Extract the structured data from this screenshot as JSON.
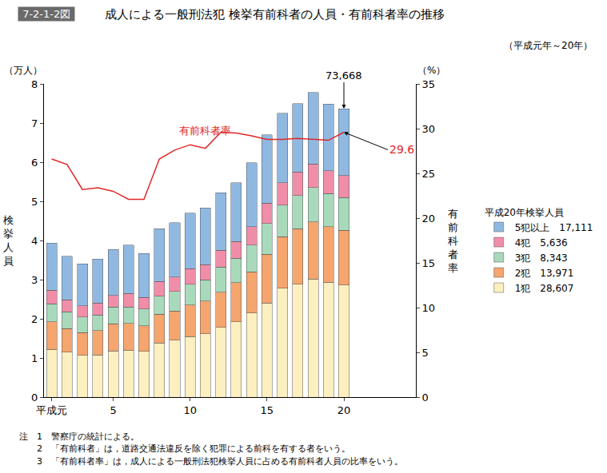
{
  "chart_data": {
    "type": "bar",
    "figure_number": "7-2-1-2図",
    "title": "成人による一般刑法犯 検挙有前科者の人員・有前科者率の推移",
    "subtitle": "（平成元年～20年）",
    "categories": [
      "平成元",
      null,
      null,
      null,
      "5",
      null,
      null,
      null,
      null,
      "10",
      null,
      null,
      null,
      null,
      "15",
      null,
      null,
      null,
      null,
      "20"
    ],
    "stacked": true,
    "grid": false,
    "legend": "right",
    "legend_title": "平成20年検挙人員",
    "y_label": "（万人）",
    "y_title": "検挙人員",
    "y2_label": "（%）",
    "y2_title": "有前科者率",
    "ylim": [
      0,
      8
    ],
    "yticks": [
      0,
      1,
      2,
      3,
      4,
      5,
      6,
      7,
      8
    ],
    "y2lim": [
      0,
      35
    ],
    "y2ticks": [
      0,
      5,
      10,
      15,
      20,
      25,
      30,
      35
    ],
    "series": [
      {
        "name": "1犯",
        "type": "bar",
        "color": "#fcefc0",
        "count_2008": 28607,
        "count_2008_label": "28,607",
        "values": [
          1.22,
          1.15,
          1.07,
          1.08,
          1.18,
          1.2,
          1.17,
          1.38,
          1.45,
          1.55,
          1.62,
          1.78,
          1.92,
          2.15,
          2.4,
          2.78,
          2.88,
          3.02,
          2.93,
          2.8607
        ]
      },
      {
        "name": "2犯",
        "type": "bar",
        "color": "#f5a56e",
        "count_2008": 13971,
        "count_2008_label": "13,971",
        "values": [
          0.7,
          0.6,
          0.58,
          0.62,
          0.69,
          0.68,
          0.65,
          0.74,
          0.75,
          0.8,
          0.83,
          0.9,
          1.0,
          1.05,
          1.25,
          1.32,
          1.42,
          1.45,
          1.42,
          1.3971
        ]
      },
      {
        "name": "3犯",
        "type": "bar",
        "color": "#a9d9bb",
        "count_2008": 8343,
        "count_2008_label": "8,343",
        "values": [
          0.46,
          0.43,
          0.4,
          0.4,
          0.43,
          0.42,
          0.43,
          0.46,
          0.5,
          0.53,
          0.55,
          0.64,
          0.63,
          0.68,
          0.78,
          0.8,
          0.85,
          0.88,
          0.85,
          0.8343
        ]
      },
      {
        "name": "4犯",
        "type": "bar",
        "color": "#f08ea9",
        "count_2008": 5636,
        "count_2008_label": "5,636",
        "values": [
          0.35,
          0.3,
          0.28,
          0.3,
          0.3,
          0.35,
          0.3,
          0.37,
          0.37,
          0.4,
          0.38,
          0.43,
          0.42,
          0.47,
          0.52,
          0.57,
          0.6,
          0.6,
          0.58,
          0.5636
        ]
      },
      {
        "name": "5犯以上",
        "type": "bar",
        "color": "#90b9e2",
        "count_2008": 17111,
        "count_2008_label": "17,111",
        "values": [
          1.2,
          1.12,
          1.07,
          1.13,
          1.17,
          1.23,
          1.12,
          1.35,
          1.38,
          1.42,
          1.45,
          1.47,
          1.5,
          1.63,
          1.75,
          1.78,
          1.75,
          1.83,
          1.7,
          1.7111
        ]
      },
      {
        "name": "有前科者率",
        "type": "line",
        "axis": "y2",
        "color": "#e02828",
        "values": [
          26.6,
          26.0,
          23.2,
          23.4,
          23.0,
          22.1,
          22.1,
          26.6,
          27.6,
          28.2,
          27.8,
          29.6,
          29.5,
          29.2,
          28.8,
          28.8,
          28.9,
          28.8,
          28.7,
          29.6
        ]
      }
    ],
    "annotations": [
      {
        "category": "20",
        "value": 7.3668,
        "label": "73,668"
      },
      {
        "category": "20",
        "value": 29.6,
        "label": "29.6",
        "axis": "y2"
      }
    ],
    "notes": [
      "注　1　警察庁の統計による。",
      "　　2　「有前科者」は，道路交通法違反を除く犯罪による前科を有する者をいう。",
      "　　3　「有前科者率」は，成人による一般刑法犯検挙人員に占める有前科者人員の比率をいう。"
    ]
  }
}
